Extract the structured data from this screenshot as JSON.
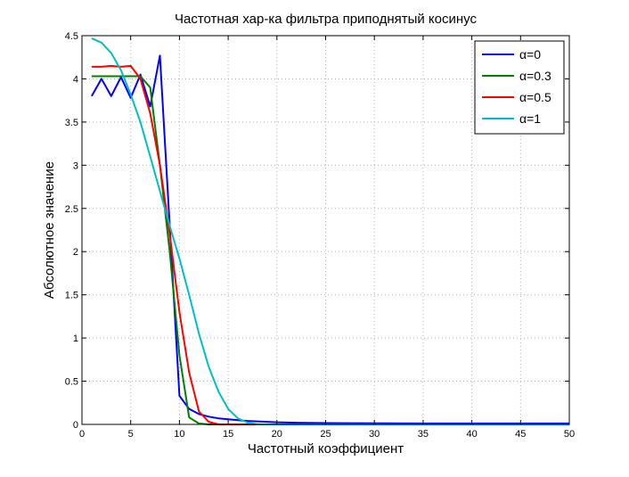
{
  "chart_data": {
    "type": "line",
    "title": "Частотная хар-ка фильтра приподнятый косинус",
    "xlabel": "Частотный коэффициент",
    "ylabel": "Абсолютное значение",
    "xlim": [
      0,
      50
    ],
    "ylim": [
      0,
      4.5
    ],
    "xticks": [
      "0",
      "5",
      "10",
      "15",
      "20",
      "25",
      "30",
      "35",
      "40",
      "45",
      "50"
    ],
    "yticks": [
      "0",
      "0.5",
      "1",
      "1.5",
      "2",
      "2.5",
      "3",
      "3.5",
      "4",
      "4.5"
    ],
    "grid": true,
    "legend_position": "top-right",
    "series": [
      {
        "name": "α=0",
        "color": "#0000ff",
        "x": [
          1,
          2,
          3,
          4,
          5,
          6,
          7,
          8,
          9,
          10,
          11,
          12,
          13,
          14,
          15,
          16,
          17,
          18,
          19,
          20,
          22,
          25,
          30,
          35,
          40,
          45,
          50
        ],
        "y": [
          3.8,
          4.0,
          3.8,
          4.02,
          3.78,
          4.05,
          3.68,
          4.27,
          2.3,
          0.33,
          0.18,
          0.12,
          0.09,
          0.07,
          0.06,
          0.05,
          0.04,
          0.035,
          0.03,
          0.025,
          0.02,
          0.015,
          0.012,
          0.01,
          0.01,
          0.01,
          0.01
        ]
      },
      {
        "name": "α=0.3",
        "color": "#008000",
        "x": [
          1,
          2,
          3,
          4,
          5,
          6,
          7,
          8,
          9,
          10,
          11,
          12,
          13,
          14,
          15,
          20,
          30,
          40,
          50
        ],
        "y": [
          4.03,
          4.03,
          4.03,
          4.03,
          4.03,
          4.03,
          3.9,
          3.0,
          2.0,
          0.8,
          0.08,
          0.01,
          0.0,
          0.0,
          0.0,
          0.0,
          0.0,
          0.0,
          0.0
        ]
      },
      {
        "name": "α=0.5",
        "color": "#ff0000",
        "x": [
          1,
          2,
          3,
          4,
          5,
          6,
          7,
          8,
          9,
          10,
          11,
          12,
          13,
          14,
          15,
          20,
          30,
          40,
          50
        ],
        "y": [
          4.14,
          4.14,
          4.15,
          4.14,
          4.15,
          4.0,
          3.6,
          3.0,
          2.2,
          1.3,
          0.6,
          0.15,
          0.03,
          0.0,
          0.0,
          0.0,
          0.0,
          0.0,
          0.0
        ]
      },
      {
        "name": "α=1",
        "color": "#00bfbf",
        "x": [
          1,
          2,
          3,
          4,
          5,
          6,
          7,
          8,
          9,
          10,
          11,
          12,
          13,
          14,
          15,
          16,
          17,
          18,
          20,
          30,
          40,
          50
        ],
        "y": [
          4.47,
          4.42,
          4.3,
          4.1,
          3.82,
          3.5,
          3.1,
          2.7,
          2.3,
          1.92,
          1.5,
          1.05,
          0.67,
          0.38,
          0.18,
          0.07,
          0.02,
          0.0,
          0.0,
          0.0,
          0.0,
          0.0
        ]
      }
    ]
  }
}
